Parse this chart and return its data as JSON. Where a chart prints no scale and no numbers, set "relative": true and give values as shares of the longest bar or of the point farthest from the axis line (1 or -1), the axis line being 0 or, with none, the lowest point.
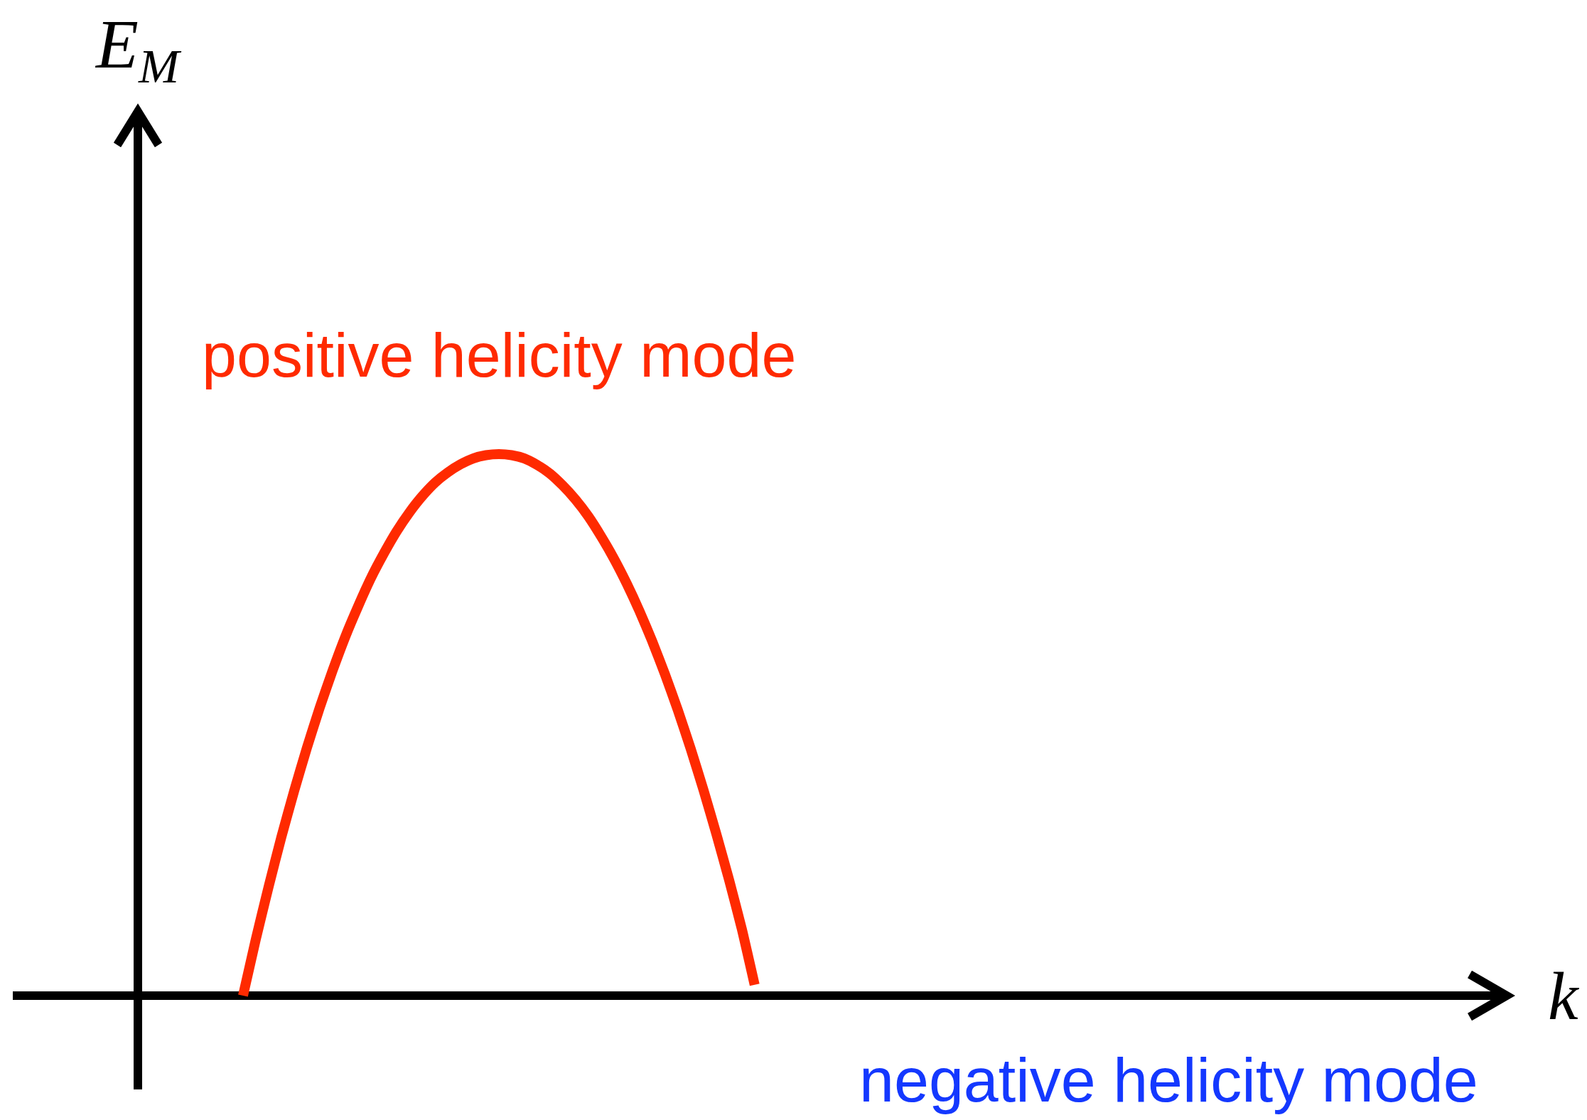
{
  "chart_data": {
    "type": "line",
    "relative": true,
    "xlabel": "k",
    "categories": [
      null,
      null,
      null,
      null,
      null,
      null,
      null,
      null,
      null,
      null,
      null,
      null,
      null,
      null,
      null,
      null,
      null,
      null,
      null,
      null,
      null,
      null,
      null,
      null,
      null,
      null,
      null,
      null,
      null,
      null,
      null,
      null,
      null,
      null,
      null,
      null,
      null,
      null,
      null,
      null,
      null,
      null,
      null,
      null,
      null,
      null,
      null,
      null,
      null,
      null,
      null,
      null,
      null,
      null,
      null,
      null,
      null,
      null,
      null,
      null,
      null,
      null,
      null,
      null,
      null,
      null,
      null,
      null,
      null,
      null,
      null,
      null,
      null,
      null,
      null,
      null,
      null,
      null,
      null,
      null,
      null,
      null,
      null,
      null,
      null,
      null,
      null,
      null,
      null,
      null,
      null,
      null,
      null,
      null,
      null,
      null,
      null,
      null,
      null,
      null,
      null,
      null,
      null,
      null,
      null,
      null,
      null,
      null,
      null,
      null,
      null,
      null,
      null,
      null,
      null,
      null,
      null
    ],
    "series": [
      {
        "name": "positive helicity mode",
        "color": "#ff2a00",
        "values": [
          null,
          null,
          null,
          null,
          null,
          null,
          null,
          null,
          null,
          null,
          null,
          null,
          null,
          null,
          null,
          null,
          null,
          null,
          0,
          0.104,
          0.201,
          0.293,
          0.378,
          0.458,
          0.532,
          0.6,
          0.663,
          0.719,
          0.771,
          0.816,
          0.857,
          0.892,
          0.922,
          0.947,
          0.966,
          0.981,
          0.992,
          0.998,
          1,
          0.998,
          0.992,
          0.98,
          0.964,
          0.942,
          0.916,
          0.885,
          0.848,
          0.807,
          0.761,
          0.71,
          0.654,
          0.593,
          0.527,
          0.456,
          0.38,
          0.299,
          0.214,
          0.123,
          0.02,
          null,
          null,
          null,
          null,
          null,
          null,
          null,
          null,
          null,
          null,
          null,
          null,
          null,
          null,
          null,
          null,
          null,
          null,
          null,
          null,
          null,
          null,
          null,
          null,
          null,
          null,
          null,
          null,
          null,
          null,
          null,
          null,
          null,
          null,
          null,
          null,
          null,
          null,
          null,
          null,
          null,
          null,
          null,
          null,
          null,
          null,
          null,
          null,
          null,
          null,
          null,
          null,
          null,
          null,
          null,
          null,
          null,
          null
        ]
      }
    ],
    "annotations": [
      "E$_{M}$",
      "negative helicity mode"
    ]
  }
}
